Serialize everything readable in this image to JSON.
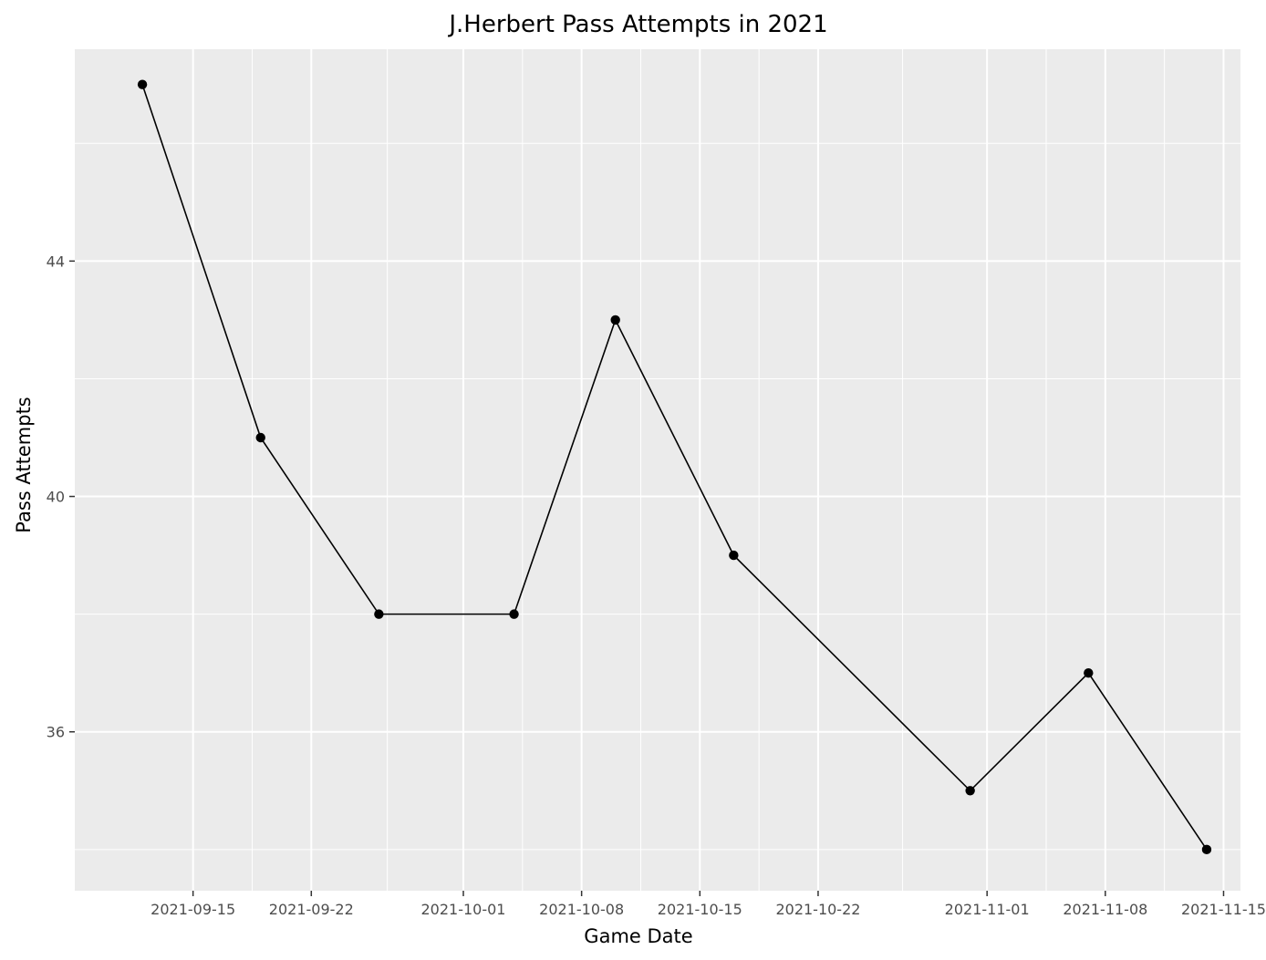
{
  "chart_data": {
    "type": "line",
    "title": "J.Herbert Pass Attempts in 2021",
    "xlabel": "Game Date",
    "ylabel": "Pass Attempts",
    "x_type": "date",
    "x_ticks": [
      "2021-09-15",
      "2021-09-22",
      "2021-10-01",
      "2021-10-08",
      "2021-10-15",
      "2021-10-22",
      "2021-11-01",
      "2021-11-08",
      "2021-11-15"
    ],
    "y_ticks": [
      36,
      40,
      44
    ],
    "xlim": [
      "2021-09-08",
      "2021-11-16"
    ],
    "ylim": [
      33.3,
      47.6
    ],
    "grid": true,
    "legend": "none",
    "series": [
      {
        "color": "#000000",
        "points": [
          {
            "x": "2021-09-12",
            "y": 47
          },
          {
            "x": "2021-09-19",
            "y": 41
          },
          {
            "x": "2021-09-26",
            "y": 38
          },
          {
            "x": "2021-10-04",
            "y": 38
          },
          {
            "x": "2021-10-10",
            "y": 43
          },
          {
            "x": "2021-10-17",
            "y": 39
          },
          {
            "x": "2021-10-31",
            "y": 35
          },
          {
            "x": "2021-11-07",
            "y": 37
          },
          {
            "x": "2021-11-14",
            "y": 34
          }
        ]
      }
    ]
  }
}
